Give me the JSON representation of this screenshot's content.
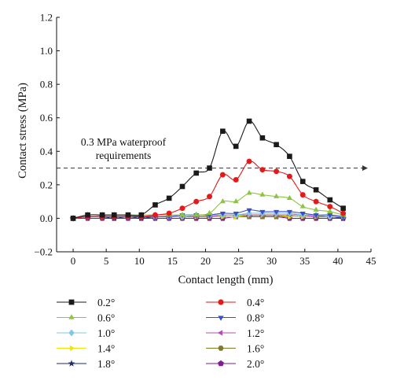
{
  "chart_data": {
    "type": "line",
    "title": "",
    "xlabel": "Contact length (mm)",
    "ylabel": "Contact stress (MPa)",
    "xlim": [
      -2.5,
      45
    ],
    "ylim": [
      -0.2,
      1.2
    ],
    "x_ticks": [
      0,
      5,
      10,
      15,
      20,
      25,
      30,
      35,
      40,
      45
    ],
    "y_ticks": [
      -0.2,
      0.0,
      0.2,
      0.4,
      0.6,
      0.8,
      1.0,
      1.2
    ],
    "x_tick_labels": [
      "0",
      "5",
      "10",
      "15",
      "20",
      "25",
      "30",
      "35",
      "40",
      "45"
    ],
    "y_tick_labels": [
      "−0.2",
      "0.0",
      "0.2",
      "0.4",
      "0.6",
      "0.8",
      "1.0",
      "1.2"
    ],
    "grid": false,
    "legend_position": "bottom",
    "x": [
      0,
      2,
      4,
      6,
      8,
      10,
      12,
      14,
      16,
      18,
      20,
      22,
      24,
      26,
      28,
      30,
      32,
      34,
      36,
      38,
      40
    ],
    "series": [
      {
        "name": "0.2°",
        "marker": "square",
        "color": "#1a1a1a",
        "curve_color": "#1a1a1a",
        "x": [
          0,
          2.2,
          4.4,
          6.2,
          8.3,
          10.3,
          12.4,
          14.5,
          16.5,
          18.6,
          20.6,
          22.6,
          24.6,
          26.6,
          28.6,
          30.7,
          32.7,
          34.7,
          36.7,
          38.8,
          40.8
        ],
        "values": [
          0.0,
          0.02,
          0.02,
          0.02,
          0.02,
          0.02,
          0.08,
          0.12,
          0.19,
          0.27,
          0.3,
          0.52,
          0.43,
          0.58,
          0.48,
          0.44,
          0.37,
          0.22,
          0.17,
          0.11,
          0.06
        ]
      },
      {
        "name": "0.4°",
        "marker": "circle",
        "color": "#e31a1c",
        "curve_color": "#e31a1c",
        "x": [
          0,
          2.2,
          4.4,
          6.2,
          8.3,
          10.3,
          12.4,
          14.5,
          16.5,
          18.6,
          20.6,
          22.6,
          24.6,
          26.6,
          28.6,
          30.7,
          32.7,
          34.7,
          36.7,
          38.8,
          40.8
        ],
        "values": [
          0.0,
          0.01,
          0.01,
          0.01,
          0.01,
          0.01,
          0.02,
          0.03,
          0.06,
          0.1,
          0.13,
          0.26,
          0.23,
          0.34,
          0.29,
          0.28,
          0.25,
          0.14,
          0.1,
          0.07,
          0.03
        ]
      },
      {
        "name": "0.6°",
        "marker": "triangle-up",
        "color": "#8cc63f",
        "curve_color": "#8cc63f",
        "x": [
          0,
          2.2,
          4.4,
          6.2,
          8.3,
          10.3,
          12.4,
          14.5,
          16.5,
          18.6,
          20.6,
          22.6,
          24.6,
          26.6,
          28.6,
          30.7,
          32.7,
          34.7,
          36.7,
          38.8,
          40.8
        ],
        "values": [
          0.0,
          0.02,
          0.02,
          0.02,
          0.02,
          0.02,
          0.02,
          0.02,
          0.02,
          0.02,
          0.03,
          0.1,
          0.1,
          0.15,
          0.14,
          0.13,
          0.12,
          0.07,
          0.05,
          0.04,
          0.02
        ]
      },
      {
        "name": "0.8°",
        "marker": "triangle-down",
        "color": "#3a50c8",
        "curve_color": "#3a50c8",
        "x": [
          0,
          2.2,
          4.4,
          6.2,
          8.3,
          10.3,
          12.4,
          14.5,
          16.5,
          18.6,
          20.6,
          22.6,
          24.6,
          26.6,
          28.6,
          30.7,
          32.7,
          34.7,
          36.7,
          38.8,
          40.8
        ],
        "values": [
          0.0,
          0.01,
          0.01,
          0.01,
          0.01,
          0.01,
          0.01,
          0.01,
          0.02,
          0.02,
          0.02,
          0.03,
          0.03,
          0.05,
          0.04,
          0.04,
          0.04,
          0.03,
          0.02,
          0.02,
          0.01
        ]
      },
      {
        "name": "1.0°",
        "marker": "diamond",
        "color": "#7ec8e3",
        "curve_color": "#7ec8e3",
        "x": [
          0,
          2.2,
          4.4,
          6.2,
          8.3,
          10.3,
          12.4,
          14.5,
          16.5,
          18.6,
          20.6,
          22.6,
          24.6,
          26.6,
          28.6,
          30.7,
          32.7,
          34.7,
          36.7,
          38.8,
          40.8
        ],
        "values": [
          0.0,
          0.01,
          0.01,
          0.01,
          0.01,
          0.01,
          0.01,
          0.01,
          0.01,
          0.02,
          0.02,
          0.02,
          0.02,
          0.03,
          0.03,
          0.03,
          0.03,
          0.02,
          0.02,
          0.01,
          0.01
        ]
      },
      {
        "name": "1.2°",
        "marker": "triangle-left",
        "color": "#b04fb0",
        "curve_color": "#b04fb0",
        "x": [
          0,
          2.2,
          4.4,
          6.2,
          8.3,
          10.3,
          12.4,
          14.5,
          16.5,
          18.6,
          20.6,
          22.6,
          24.6,
          26.6,
          28.6,
          30.7,
          32.7,
          34.7,
          36.7,
          38.8,
          40.8
        ],
        "values": [
          0.0,
          0.01,
          0.01,
          0.01,
          0.01,
          0.01,
          0.01,
          0.01,
          0.01,
          0.01,
          0.01,
          0.02,
          0.02,
          0.02,
          0.02,
          0.02,
          0.02,
          0.02,
          0.01,
          0.01,
          0.01
        ]
      },
      {
        "name": "1.4°",
        "marker": "triangle-right",
        "color": "#f2e500",
        "curve_color": "#f2e500",
        "x": [
          0,
          2.2,
          4.4,
          6.2,
          8.3,
          10.3,
          12.4,
          14.5,
          16.5,
          18.6,
          20.6,
          22.6,
          24.6,
          26.6,
          28.6,
          30.7,
          32.7,
          34.7,
          36.7,
          38.8,
          40.8
        ],
        "values": [
          0.0,
          0.01,
          0.01,
          0.01,
          0.01,
          0.01,
          0.01,
          0.01,
          0.01,
          0.01,
          0.01,
          0.01,
          0.01,
          0.02,
          0.02,
          0.02,
          0.01,
          0.01,
          0.01,
          0.01,
          0.01
        ]
      },
      {
        "name": "1.6°",
        "marker": "hexagon",
        "color": "#7d7a2a",
        "curve_color": "#7d7a2a",
        "x": [
          0,
          2.2,
          4.4,
          6.2,
          8.3,
          10.3,
          12.4,
          14.5,
          16.5,
          18.6,
          20.6,
          22.6,
          24.6,
          26.6,
          28.6,
          30.7,
          32.7,
          34.7,
          36.7,
          38.8,
          40.8
        ],
        "values": [
          0.0,
          0.01,
          0.01,
          0.01,
          0.01,
          0.01,
          0.01,
          0.01,
          0.01,
          0.01,
          0.01,
          0.01,
          0.01,
          0.01,
          0.01,
          0.01,
          0.01,
          0.01,
          0.01,
          0.01,
          0.01
        ]
      },
      {
        "name": "1.8°",
        "marker": "star",
        "color": "#1f2a6b",
        "curve_color": "#1f2a6b",
        "x": [
          0,
          2.2,
          4.4,
          6.2,
          8.3,
          10.3,
          12.4,
          14.5,
          16.5,
          18.6,
          20.6,
          22.6,
          24.6,
          26.6,
          28.6,
          30.7,
          32.7,
          34.7,
          36.7,
          38.8,
          40.8
        ],
        "values": [
          0.0,
          0.01,
          0.01,
          0.0,
          0.01,
          0.0,
          0.01,
          0.01,
          0.01,
          0.01,
          0.01,
          0.01,
          0.01,
          0.01,
          0.01,
          0.01,
          0.01,
          0.01,
          0.01,
          0.01,
          0.0
        ]
      },
      {
        "name": "2.0°",
        "marker": "pentagon",
        "color": "#7b1f8c",
        "curve_color": "#7b1f8c",
        "x": [
          0,
          2.2,
          4.4,
          6.2,
          8.3,
          10.3,
          12.4,
          14.5,
          16.5,
          18.6,
          20.6,
          22.6,
          24.6,
          26.6,
          28.6,
          30.7,
          32.7,
          34.7,
          36.7,
          38.8,
          40.8
        ],
        "values": [
          0.0,
          0.0,
          0.0,
          0.0,
          0.0,
          0.0,
          0.0,
          0.0,
          0.0,
          0.0,
          0.0,
          0.0,
          0.01,
          0.01,
          0.01,
          0.01,
          0.0,
          0.0,
          0.0,
          0.0,
          0.0
        ]
      }
    ],
    "reference_line": {
      "y": 0.3,
      "style": "dashed",
      "arrow": "right",
      "color": "#333333"
    },
    "annotation": {
      "lines": [
        "0.3 MPa waterproof",
        "requirements"
      ]
    }
  }
}
